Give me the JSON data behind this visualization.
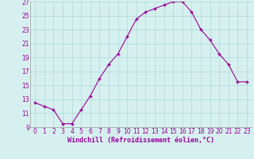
{
  "hours": [
    0,
    1,
    2,
    3,
    4,
    5,
    6,
    7,
    8,
    9,
    10,
    11,
    12,
    13,
    14,
    15,
    16,
    17,
    18,
    19,
    20,
    21,
    22,
    23
  ],
  "temps": [
    12.5,
    12.0,
    11.5,
    9.5,
    9.5,
    11.5,
    13.5,
    16.0,
    18.0,
    19.5,
    22.0,
    24.5,
    25.5,
    26.0,
    26.5,
    27.0,
    27.0,
    25.5,
    23.0,
    21.5,
    19.5,
    18.0,
    15.5,
    15.5
  ],
  "ylim": [
    9,
    27
  ],
  "yticks": [
    9,
    11,
    13,
    15,
    17,
    19,
    21,
    23,
    25,
    27
  ],
  "xticks": [
    0,
    1,
    2,
    3,
    4,
    5,
    6,
    7,
    8,
    9,
    10,
    11,
    12,
    13,
    14,
    15,
    16,
    17,
    18,
    19,
    20,
    21,
    22,
    23
  ],
  "line_color": "#990099",
  "marker": "+",
  "background_color": "#d6f0f0",
  "grid_color": "#b0d8d8",
  "xlabel": "Windchill (Refroidissement éolien,°C)",
  "xlabel_fontsize": 6.0,
  "tick_fontsize": 5.5
}
